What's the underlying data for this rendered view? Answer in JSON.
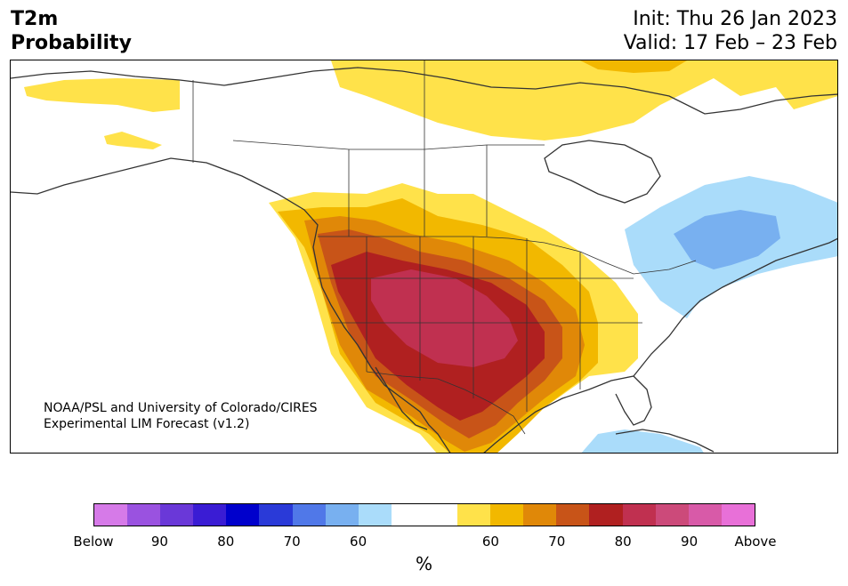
{
  "header": {
    "title_line1": "T2m",
    "title_line2": "Probability",
    "init": "Init: Thu 26 Jan 2023",
    "valid": "Valid: 17 Feb – 23 Feb"
  },
  "credit": {
    "line1": "NOAA/PSL and University of Colorado/CIRES",
    "line2": "Experimental LIM Forecast (v1.2)"
  },
  "colorbar": {
    "colors": [
      "#d67ae8",
      "#9a52e0",
      "#6a38d8",
      "#3a1cd4",
      "#0000cc",
      "#2a3ad8",
      "#5078e8",
      "#78b0f0",
      "#aadcfa",
      "#ffffff",
      "#ffffff",
      "#ffe24a",
      "#f2b800",
      "#e08808",
      "#c85418",
      "#b02020",
      "#c03050",
      "#cc4a7a",
      "#d85aa8",
      "#e870d8"
    ],
    "ticks": [
      "Below",
      "90",
      "80",
      "70",
      "60",
      "60",
      "70",
      "80",
      "90",
      "Above"
    ],
    "units": "%"
  },
  "map": {
    "colors": {
      "yellow": "#ffe24a",
      "gold": "#f2b800",
      "orange": "#e08808",
      "dark_orange": "#c85418",
      "red": "#b02020",
      "crimson": "#c03050",
      "light_blue": "#aadcfa",
      "blue": "#78b0f0",
      "coast": "#333333"
    }
  }
}
